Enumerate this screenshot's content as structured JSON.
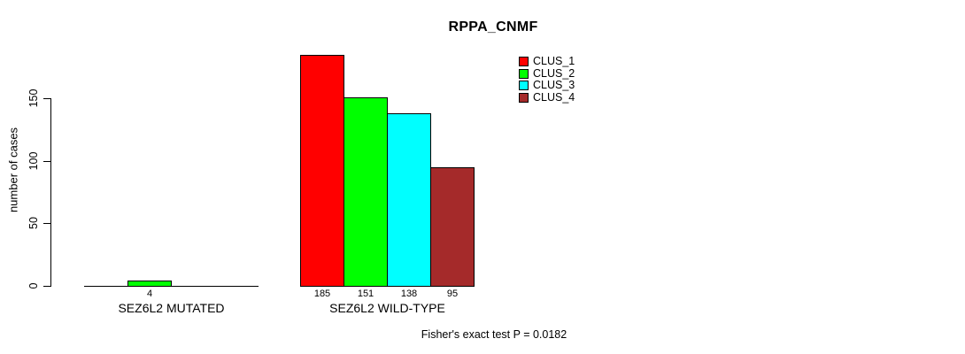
{
  "chart_data": {
    "type": "bar",
    "title": "RPPA_CNMF",
    "ylabel": "number of cases",
    "xlabel": "",
    "categories": [
      "SEZ6L2 MUTATED",
      "SEZ6L2 WILD-TYPE"
    ],
    "series": [
      {
        "name": "CLUS_1",
        "color": "#ff0000",
        "values": [
          0,
          185
        ]
      },
      {
        "name": "CLUS_2",
        "color": "#00ff00",
        "values": [
          4,
          151
        ]
      },
      {
        "name": "CLUS_3",
        "color": "#00ffff",
        "values": [
          0,
          138
        ]
      },
      {
        "name": "CLUS_4",
        "color": "#a52a2a",
        "values": [
          0,
          95
        ]
      }
    ],
    "yticks": [
      0,
      50,
      100,
      150
    ],
    "ylim": [
      0,
      150
    ],
    "grid": false,
    "legend_position": "top-right",
    "bar_value_labels_visible": [
      "4",
      "185",
      "151",
      "138",
      "95"
    ],
    "caption": "Fisher's exact test P = 0.0182"
  }
}
